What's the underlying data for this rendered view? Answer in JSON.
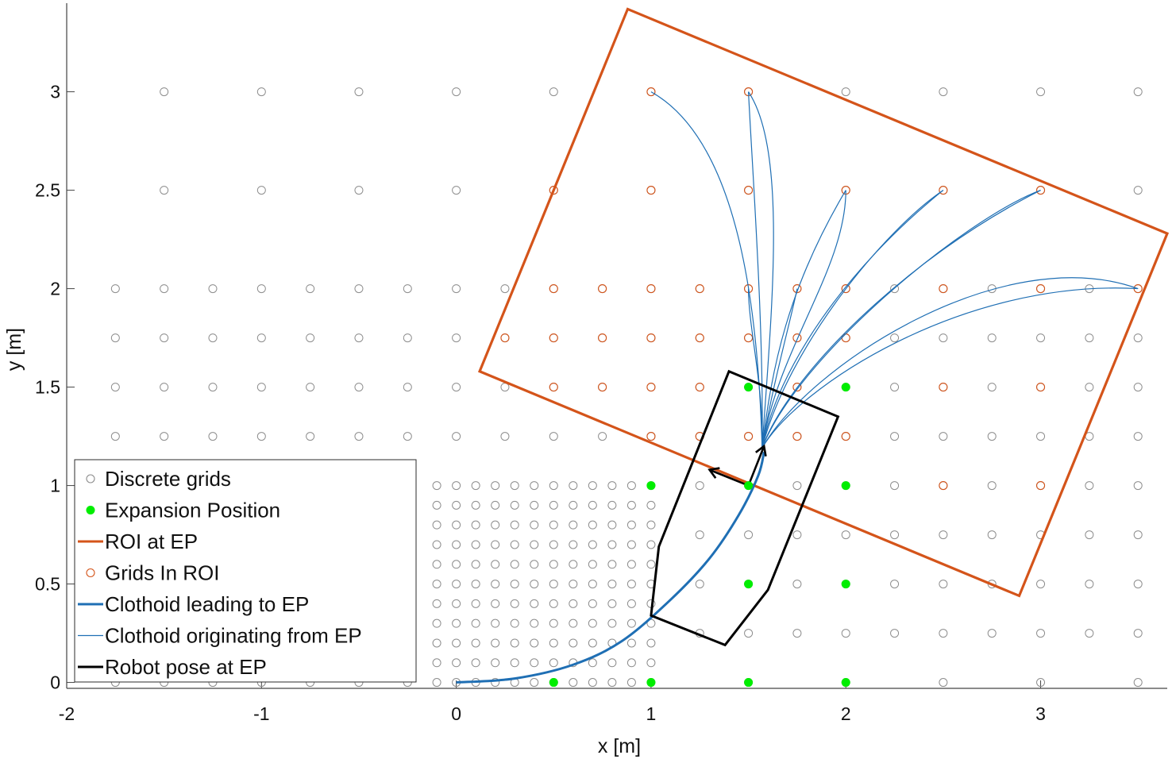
{
  "chart_data": {
    "type": "scatter",
    "title": "",
    "xlabel": "x [m]",
    "ylabel": "y [m]",
    "xlim": [
      -2,
      3.65
    ],
    "ylim": [
      -0.03,
      3.45
    ],
    "xticks": [
      -2,
      -1,
      0,
      1,
      2,
      3
    ],
    "yticks": [
      0,
      0.5,
      1,
      1.5,
      2,
      2.5,
      3
    ],
    "xtick_labels": [
      "-2",
      "-1",
      "0",
      "1",
      "2",
      "3"
    ],
    "ytick_labels": [
      "0",
      "0.5",
      "1",
      "1.5",
      "2",
      "2.5",
      "3"
    ],
    "grid": false,
    "legend_position": "bottom-left",
    "colors": {
      "grid_point": "#8c8c8c",
      "expansion": "#00ee00",
      "roi": "#d4541a",
      "clothoid": "#1f6fb4",
      "robot": "#000000"
    },
    "legend": [
      {
        "label": "Discrete grids",
        "symbol": "ring",
        "color": "#8c8c8c"
      },
      {
        "label": "Expansion Position",
        "symbol": "dot",
        "color": "#00ee00"
      },
      {
        "label": "ROI at EP",
        "symbol": "line",
        "color": "#d4541a",
        "width": 3
      },
      {
        "label": "Grids In ROI",
        "symbol": "ring",
        "color": "#d4541a"
      },
      {
        "label": "Clothoid leading to EP",
        "symbol": "line",
        "color": "#1f6fb4",
        "width": 3
      },
      {
        "label": "Clothoid originating from EP",
        "symbol": "line",
        "color": "#1f6fb4",
        "width": 1.2
      },
      {
        "label": "Robot pose at EP",
        "symbol": "line",
        "color": "#000000",
        "width": 3
      }
    ],
    "series": [
      {
        "name": "Discrete grids",
        "regions": [
          {
            "x_from": 0.5,
            "x_to": 3.5,
            "x_step": 0.5,
            "ys": [
              3,
              2.5,
              0
            ]
          },
          {
            "x_from": -1.5,
            "x_to": 0,
            "x_step": 0.5,
            "ys": [
              3,
              2.5
            ]
          },
          {
            "x_from": 0.25,
            "x_to": 3.5,
            "x_step": 0.25,
            "ys": [
              2,
              1.75,
              1.5,
              1.25
            ]
          },
          {
            "x_from": -1.75,
            "x_to": 0,
            "x_step": 0.25,
            "ys": [
              2,
              1.75,
              1.5,
              1.25
            ]
          },
          {
            "x_from": 1.25,
            "x_to": 3.5,
            "x_step": 0.25,
            "ys": [
              1,
              0.75,
              0.5,
              0.25
            ]
          },
          {
            "x_from": -1.75,
            "x_to": -0.25,
            "x_step": 0.25,
            "ys": [
              0
            ]
          },
          {
            "x_from": -0.1,
            "x_to": 1.0,
            "x_step": 0.1,
            "ys": [
              1,
              0.9,
              0.8,
              0.7,
              0.6,
              0.5,
              0.4,
              0.3,
              0.2,
              0.1,
              0
            ]
          }
        ]
      },
      {
        "name": "Expansion Position",
        "points": [
          [
            0.5,
            0
          ],
          [
            1,
            0
          ],
          [
            1.5,
            0
          ],
          [
            2,
            0
          ],
          [
            1.5,
            0.5
          ],
          [
            2,
            0.5
          ],
          [
            1,
            1
          ],
          [
            1.5,
            1
          ],
          [
            2,
            1
          ],
          [
            1.5,
            1.5
          ],
          [
            2,
            1.5
          ]
        ]
      },
      {
        "name": "ROI at EP",
        "polygon": [
          [
            0.88,
            3.42
          ],
          [
            3.65,
            2.28
          ],
          [
            2.89,
            0.44
          ],
          [
            0.12,
            1.58
          ]
        ]
      },
      {
        "name": "Grids In ROI",
        "points": [
          [
            1,
            3
          ],
          [
            1.5,
            3
          ],
          [
            0.5,
            2.5
          ],
          [
            1,
            2.5
          ],
          [
            1.5,
            2.5
          ],
          [
            2,
            2.5
          ],
          [
            2.5,
            2.5
          ],
          [
            3,
            2.5
          ],
          [
            0.5,
            2
          ],
          [
            0.75,
            2
          ],
          [
            1,
            2
          ],
          [
            1.25,
            2
          ],
          [
            1.5,
            2
          ],
          [
            1.75,
            2
          ],
          [
            2,
            2
          ],
          [
            2.5,
            2
          ],
          [
            3,
            2
          ],
          [
            3.5,
            2
          ],
          [
            0.25,
            1.75
          ],
          [
            0.5,
            1.75
          ],
          [
            0.75,
            1.75
          ],
          [
            1,
            1.75
          ],
          [
            1.25,
            1.75
          ],
          [
            1.5,
            1.75
          ],
          [
            1.75,
            1.75
          ],
          [
            2,
            1.75
          ],
          [
            0.5,
            1.5
          ],
          [
            0.75,
            1.5
          ],
          [
            1,
            1.5
          ],
          [
            1.25,
            1.5
          ],
          [
            1.75,
            1.5
          ],
          [
            2.5,
            1.5
          ],
          [
            3,
            1.5
          ],
          [
            1,
            1.25
          ],
          [
            1.25,
            1.25
          ],
          [
            1.5,
            1.25
          ],
          [
            1.75,
            1.25
          ],
          [
            2,
            1.25
          ],
          [
            2.5,
            1
          ],
          [
            3,
            1
          ]
        ]
      },
      {
        "name": "Clothoid leading to EP",
        "curve": [
          [
            0,
            0
          ],
          [
            0.3,
            0.02
          ],
          [
            0.6,
            0.09
          ],
          [
            0.85,
            0.21
          ],
          [
            1.1,
            0.42
          ],
          [
            1.3,
            0.63
          ],
          [
            1.45,
            0.85
          ],
          [
            1.55,
            1.05
          ],
          [
            1.58,
            1.17
          ]
        ]
      },
      {
        "name": "Clothoid originating from EP",
        "origin": [
          1.57,
          1.19
        ],
        "curves": [
          {
            "end": [
              1,
              3
            ],
            "c1": [
              1.55,
              1.9
            ],
            "c2": [
              1.45,
              2.75
            ]
          },
          {
            "end": [
              1.5,
              3
            ],
            "c1": [
              1.62,
              1.9
            ],
            "c2": [
              1.7,
              2.7
            ]
          },
          {
            "end": [
              1.5,
              3
            ],
            "c1": [
              1.58,
              1.8
            ],
            "c2": [
              1.52,
              2.6
            ]
          },
          {
            "end": [
              1.5,
              2
            ],
            "c1": [
              1.58,
              1.5
            ],
            "c2": [
              1.5,
              1.8
            ]
          },
          {
            "end": [
              1.75,
              2
            ],
            "c1": [
              1.62,
              1.5
            ],
            "c2": [
              1.72,
              1.85
            ]
          },
          {
            "end": [
              2,
              2.5
            ],
            "c1": [
              1.65,
              1.7
            ],
            "c2": [
              2.0,
              2.1
            ]
          },
          {
            "end": [
              2,
              2.5
            ],
            "c1": [
              1.62,
              1.6
            ],
            "c2": [
              1.7,
              2.0
            ]
          },
          {
            "end": [
              2.5,
              2.5
            ],
            "c1": [
              1.7,
              1.7
            ],
            "c2": [
              2.2,
              2.3
            ]
          },
          {
            "end": [
              2.5,
              2.5
            ],
            "c1": [
              1.65,
              1.6
            ],
            "c2": [
              2.0,
              2.1
            ]
          },
          {
            "end": [
              3,
              2.5
            ],
            "c1": [
              1.75,
              1.65
            ],
            "c2": [
              2.6,
              2.35
            ]
          },
          {
            "end": [
              3,
              2.5
            ],
            "c1": [
              1.7,
              1.55
            ],
            "c2": [
              2.3,
              2.15
            ]
          },
          {
            "end": [
              3.5,
              2
            ],
            "c1": [
              1.8,
              1.6
            ],
            "c2": [
              2.8,
              2.25
            ]
          },
          {
            "end": [
              3.5,
              2
            ],
            "c1": [
              1.75,
              1.5
            ],
            "c2": [
              2.6,
              2.05
            ]
          }
        ]
      },
      {
        "name": "Robot pose at EP",
        "polygon": [
          [
            1.4,
            1.58
          ],
          [
            1.96,
            1.35
          ],
          [
            1.6,
            0.47
          ],
          [
            1.38,
            0.19
          ],
          [
            1.0,
            0.34
          ],
          [
            1.04,
            0.69
          ]
        ],
        "arrows": [
          {
            "from": [
              1.5,
              1.0
            ],
            "to": [
              1.58,
              1.2
            ]
          },
          {
            "from": [
              1.5,
              1.0
            ],
            "to": [
              1.3,
              1.08
            ]
          }
        ]
      }
    ]
  }
}
